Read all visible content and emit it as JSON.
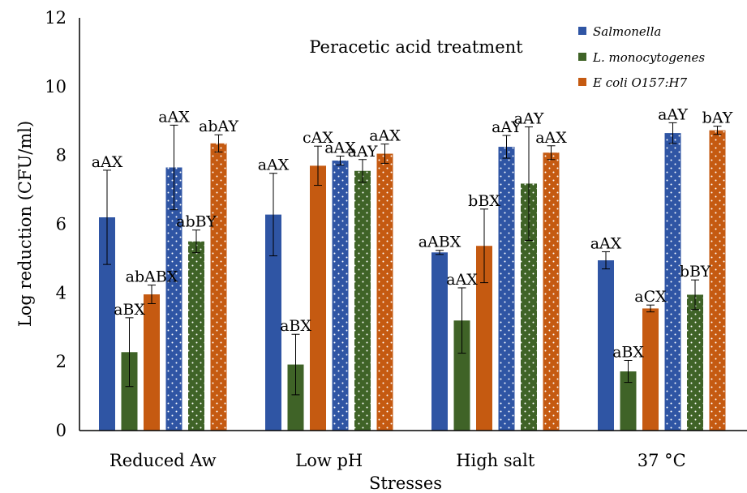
{
  "chart_data": {
    "type": "bar",
    "title": "Peracetic acid treatment",
    "xlabel": "Stresses",
    "ylabel": "Log reduction (CFU/ml)",
    "ylim": [
      0,
      12
    ],
    "yticks": [
      "0",
      "2",
      "4",
      "6",
      "8",
      "10",
      "12"
    ],
    "categories": [
      "Reduced Aw",
      "Low pH",
      "High salt",
      "37 °C"
    ],
    "legend_position": "top-right",
    "colors": {
      "salmonella": "#2f55a4",
      "listeria": "#3f6327",
      "ecoli": "#c55a11"
    },
    "series": [
      {
        "name": "Salmonella",
        "pattern": "solid",
        "color_key": "salmonella",
        "values": [
          6.2,
          6.28,
          5.18,
          4.95
        ],
        "errors": [
          1.37,
          1.2,
          0.06,
          0.25
        ],
        "labels": [
          "aAX",
          "aAX",
          "aABX",
          "aAX"
        ]
      },
      {
        "name": "L. monocytogenes",
        "pattern": "solid",
        "color_key": "listeria",
        "values": [
          2.28,
          1.92,
          3.2,
          1.72
        ],
        "errors": [
          1.0,
          0.88,
          0.95,
          0.32
        ],
        "labels": [
          "aBX",
          "aBX",
          "aAX",
          "aBX"
        ]
      },
      {
        "name": "E coli O157:H7",
        "pattern": "solid",
        "color_key": "ecoli",
        "values": [
          3.96,
          7.7,
          5.37,
          3.55
        ],
        "errors": [
          0.27,
          0.57,
          1.07,
          0.1
        ],
        "labels": [
          "abABX",
          "cAX",
          "bBX",
          "aCX"
        ]
      },
      {
        "name": "",
        "pattern": "dotted",
        "color_key": "salmonella",
        "values": [
          7.65,
          7.85,
          8.25,
          8.65
        ],
        "errors": [
          1.23,
          0.13,
          0.33,
          0.3
        ],
        "labels": [
          "aAX",
          "aAX",
          "aAY",
          "aAY"
        ]
      },
      {
        "name": "",
        "pattern": "dotted",
        "color_key": "listeria",
        "values": [
          5.5,
          7.55,
          7.18,
          3.95
        ],
        "errors": [
          0.33,
          0.33,
          1.65,
          0.43
        ],
        "labels": [
          "abBY",
          "aAY",
          "aAY",
          "bBY"
        ]
      },
      {
        "name": "",
        "pattern": "dotted",
        "color_key": "ecoli",
        "values": [
          8.35,
          8.05,
          8.08,
          8.73
        ],
        "errors": [
          0.25,
          0.28,
          0.2,
          0.12
        ],
        "labels": [
          "abAY",
          "aAX",
          "aAX",
          "bAY"
        ]
      }
    ]
  }
}
